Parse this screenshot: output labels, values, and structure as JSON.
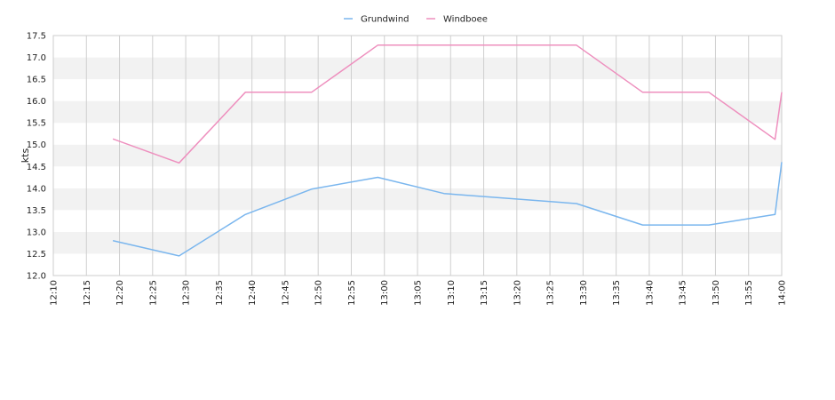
{
  "chart_data": {
    "type": "line",
    "title": "",
    "xlabel": "",
    "ylabel": "kts",
    "ylim": [
      12.0,
      17.5
    ],
    "yticks": [
      "12.0",
      "12.5",
      "13.0",
      "13.5",
      "14.0",
      "14.5",
      "15.0",
      "15.5",
      "16.0",
      "16.5",
      "17.0",
      "17.5"
    ],
    "xrange": [
      "12:10",
      "14:00"
    ],
    "xticks": [
      "12:10",
      "12:15",
      "12:20",
      "12:25",
      "12:30",
      "12:35",
      "12:40",
      "12:45",
      "12:50",
      "12:55",
      "13:00",
      "13:05",
      "13:10",
      "13:15",
      "13:20",
      "13:25",
      "13:30",
      "13:35",
      "13:40",
      "13:45",
      "13:50",
      "13:55",
      "14:00"
    ],
    "grid": "horizontal bands + vertical lines",
    "legend": "top-center",
    "series": [
      {
        "name": "Grundwind",
        "color": "#7ab6ee",
        "points": [
          {
            "x": "12:19",
            "y": 12.8
          },
          {
            "x": "12:29",
            "y": 12.45
          },
          {
            "x": "12:39",
            "y": 13.4
          },
          {
            "x": "12:49",
            "y": 13.98
          },
          {
            "x": "12:59",
            "y": 14.25
          },
          {
            "x": "13:09",
            "y": 13.88
          },
          {
            "x": "13:29",
            "y": 13.65
          },
          {
            "x": "13:39",
            "y": 13.16
          },
          {
            "x": "13:49",
            "y": 13.16
          },
          {
            "x": "13:59",
            "y": 13.4
          },
          {
            "x": "14:00",
            "y": 14.6
          }
        ]
      },
      {
        "name": "Windboee",
        "color": "#ee8fbe",
        "points": [
          {
            "x": "12:19",
            "y": 15.13
          },
          {
            "x": "12:29",
            "y": 14.58
          },
          {
            "x": "12:39",
            "y": 16.2
          },
          {
            "x": "12:49",
            "y": 16.2
          },
          {
            "x": "12:59",
            "y": 17.28
          },
          {
            "x": "13:29",
            "y": 17.28
          },
          {
            "x": "13:39",
            "y": 16.2
          },
          {
            "x": "13:49",
            "y": 16.2
          },
          {
            "x": "13:59",
            "y": 15.12
          },
          {
            "x": "14:00",
            "y": 16.2
          }
        ]
      }
    ]
  }
}
